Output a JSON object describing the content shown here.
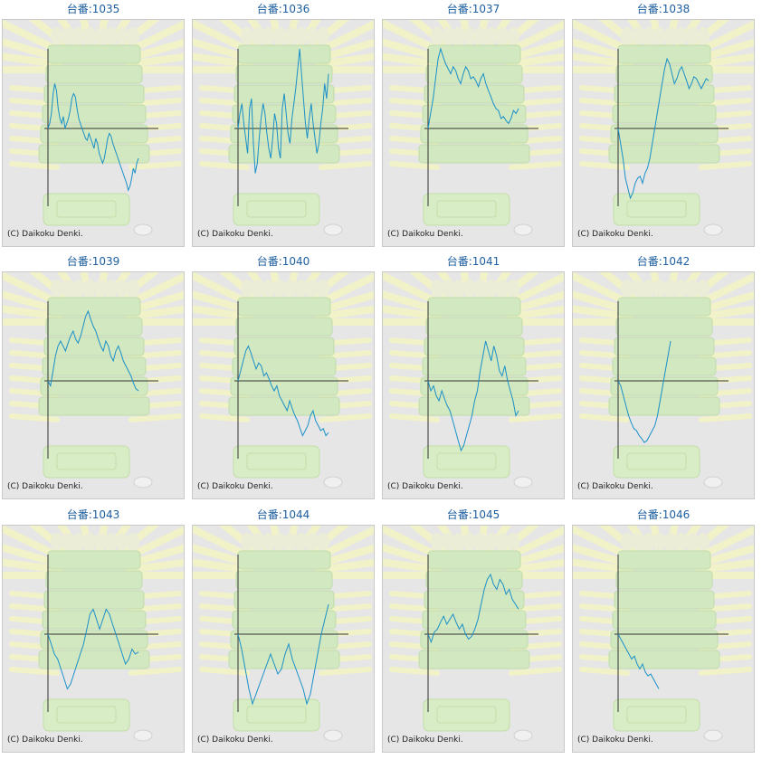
{
  "machines": [
    {
      "label": "台番:1035",
      "copyright": "(C) Daikoku Denki.",
      "graph": [
        0,
        0.05,
        0.15,
        0.35,
        0.45,
        0.38,
        0.2,
        0.1,
        0.05,
        0.12,
        0.0,
        0.05,
        0.1,
        0.18,
        0.3,
        0.35,
        0.32,
        0.2,
        0.1,
        0.05,
        0.0,
        -0.05,
        -0.1,
        -0.12,
        -0.05,
        -0.1,
        -0.15,
        -0.2,
        -0.1,
        -0.15,
        -0.25,
        -0.3,
        -0.35,
        -0.3,
        -0.2,
        -0.1,
        -0.05,
        -0.08,
        -0.15,
        -0.2,
        -0.25,
        -0.3,
        -0.35,
        -0.4,
        -0.45,
        -0.5,
        -0.55,
        -0.62,
        -0.58,
        -0.5,
        -0.4,
        -0.45,
        -0.35,
        -0.3
      ]
    },
    {
      "label": "台番:1036",
      "copyright": "(C) Daikoku Denki.",
      "graph": [
        0,
        0.15,
        0.25,
        0.05,
        -0.1,
        -0.25,
        0.2,
        0.3,
        -0.15,
        -0.45,
        -0.35,
        -0.1,
        0.1,
        0.25,
        0.15,
        -0.05,
        -0.2,
        -0.3,
        -0.1,
        0.15,
        0.05,
        -0.2,
        -0.3,
        0.2,
        0.35,
        0.15,
        -0.05,
        -0.15,
        0.1,
        0.25,
        0.4,
        0.6,
        0.8,
        0.55,
        0.3,
        0.05,
        -0.1,
        0.1,
        0.25,
        0.05,
        -0.1,
        -0.25,
        -0.15,
        0.05,
        0.2,
        0.45,
        0.3,
        0.55
      ]
    },
    {
      "label": "台番:1037",
      "copyright": "(C) Daikoku Denki.",
      "graph": [
        0,
        0.15,
        0.3,
        0.5,
        0.7,
        0.8,
        0.72,
        0.65,
        0.6,
        0.55,
        0.62,
        0.58,
        0.5,
        0.45,
        0.55,
        0.62,
        0.58,
        0.5,
        0.52,
        0.48,
        0.42,
        0.5,
        0.55,
        0.45,
        0.38,
        0.32,
        0.25,
        0.2,
        0.18,
        0.1,
        0.12,
        0.08,
        0.05,
        0.1,
        0.18,
        0.15,
        0.2
      ]
    },
    {
      "label": "台番:1038",
      "copyright": "(C) Daikoku Denki.",
      "graph": [
        0,
        -0.15,
        -0.3,
        -0.5,
        -0.6,
        -0.7,
        -0.65,
        -0.55,
        -0.5,
        -0.48,
        -0.55,
        -0.45,
        -0.4,
        -0.3,
        -0.15,
        0,
        0.15,
        0.3,
        0.45,
        0.6,
        0.7,
        0.65,
        0.55,
        0.45,
        0.5,
        0.58,
        0.62,
        0.55,
        0.48,
        0.4,
        0.45,
        0.52,
        0.5,
        0.45,
        0.4,
        0.45,
        0.5,
        0.48
      ]
    },
    {
      "label": "台番:1039",
      "copyright": "(C) Daikoku Denki.",
      "graph": [
        0,
        -0.05,
        0.1,
        0.25,
        0.35,
        0.4,
        0.35,
        0.3,
        0.38,
        0.45,
        0.5,
        0.42,
        0.38,
        0.45,
        0.55,
        0.65,
        0.7,
        0.62,
        0.55,
        0.5,
        0.42,
        0.35,
        0.3,
        0.4,
        0.35,
        0.25,
        0.2,
        0.3,
        0.35,
        0.28,
        0.2,
        0.15,
        0.1,
        0.05,
        -0.02,
        -0.08,
        -0.1
      ]
    },
    {
      "label": "台番:1040",
      "copyright": "(C) Daikoku Denki.",
      "graph": [
        0,
        0.1,
        0.2,
        0.3,
        0.35,
        0.28,
        0.2,
        0.12,
        0.18,
        0.15,
        0.05,
        0.08,
        0.02,
        -0.05,
        -0.1,
        -0.05,
        -0.15,
        -0.2,
        -0.25,
        -0.3,
        -0.2,
        -0.28,
        -0.35,
        -0.4,
        -0.48,
        -0.55,
        -0.5,
        -0.45,
        -0.35,
        -0.3,
        -0.4,
        -0.45,
        -0.5,
        -0.48,
        -0.55,
        -0.52
      ]
    },
    {
      "label": "台番:1041",
      "copyright": "(C) Daikoku Denki.",
      "graph": [
        0,
        -0.1,
        -0.05,
        -0.15,
        -0.2,
        -0.1,
        -0.18,
        -0.25,
        -0.3,
        -0.4,
        -0.5,
        -0.6,
        -0.7,
        -0.65,
        -0.55,
        -0.45,
        -0.35,
        -0.2,
        -0.1,
        0.1,
        0.25,
        0.4,
        0.3,
        0.2,
        0.35,
        0.25,
        0.1,
        0.05,
        0.15,
        0.0,
        -0.1,
        -0.2,
        -0.35,
        -0.3
      ]
    },
    {
      "label": "台番:1042",
      "copyright": "(C) Daikoku Denki.",
      "graph": [
        0,
        -0.05,
        -0.15,
        -0.25,
        -0.35,
        -0.42,
        -0.48,
        -0.5,
        -0.55,
        -0.58,
        -0.62,
        -0.6,
        -0.55,
        -0.5,
        -0.45,
        -0.35,
        -0.2,
        -0.05,
        0.1,
        0.25,
        0.4
      ]
    },
    {
      "label": "台番:1043",
      "copyright": "(C) Daikoku Denki.",
      "graph": [
        0,
        -0.1,
        -0.2,
        -0.25,
        -0.35,
        -0.45,
        -0.55,
        -0.5,
        -0.4,
        -0.3,
        -0.2,
        -0.1,
        0.05,
        0.2,
        0.25,
        0.15,
        0.05,
        0.15,
        0.25,
        0.2,
        0.1,
        0.0,
        -0.1,
        -0.2,
        -0.3,
        -0.25,
        -0.15,
        -0.2,
        -0.18
      ]
    },
    {
      "label": "台番:1044",
      "copyright": "(C) Daikoku Denki.",
      "graph": [
        0,
        -0.15,
        -0.35,
        -0.55,
        -0.7,
        -0.6,
        -0.5,
        -0.4,
        -0.3,
        -0.2,
        -0.3,
        -0.4,
        -0.35,
        -0.2,
        -0.1,
        -0.25,
        -0.35,
        -0.45,
        -0.55,
        -0.7,
        -0.6,
        -0.4,
        -0.2,
        0.0,
        0.15,
        0.3
      ]
    },
    {
      "label": "台番:1045",
      "copyright": "(C) Daikoku Denki.",
      "graph": [
        0,
        -0.08,
        0.02,
        0.05,
        0.12,
        0.18,
        0.1,
        0.15,
        0.2,
        0.12,
        0.05,
        0.1,
        0.0,
        -0.05,
        -0.02,
        0.05,
        0.15,
        0.3,
        0.45,
        0.55,
        0.6,
        0.5,
        0.45,
        0.55,
        0.5,
        0.4,
        0.45,
        0.35,
        0.3,
        0.25
      ]
    },
    {
      "label": "台番:1046",
      "copyright": "(C) Daikoku Denki.",
      "graph": [
        0,
        -0.05,
        -0.1,
        -0.15,
        -0.2,
        -0.25,
        -0.22,
        -0.3,
        -0.35,
        -0.3,
        -0.38,
        -0.42,
        -0.4,
        -0.45,
        -0.5,
        -0.55
      ]
    }
  ],
  "colors": {
    "title": "#1d5fa0",
    "line": "#1a90c8",
    "axis": "#333333",
    "panel": "#e6e6e6"
  }
}
